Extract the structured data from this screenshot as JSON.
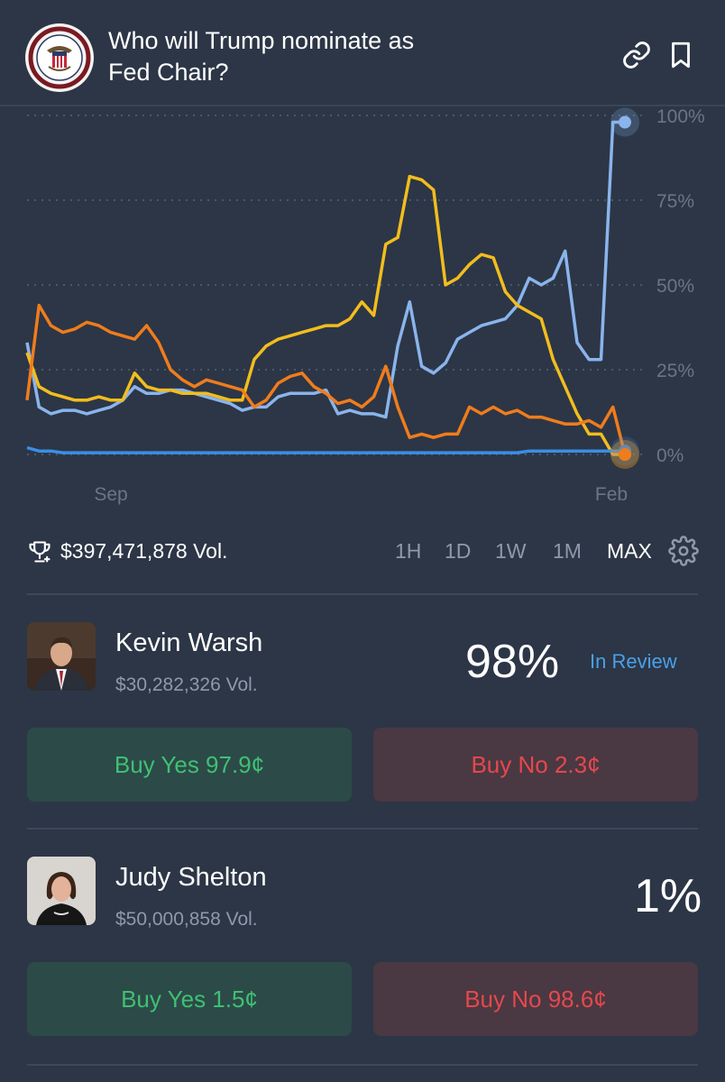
{
  "header": {
    "title_line1": "Who will Trump nominate as",
    "title_line2": "Fed Chair?"
  },
  "icons": {
    "logo": "federal-reserve-seal",
    "link": "link-icon",
    "bookmark": "bookmark-icon",
    "trophy": "trophy-icon",
    "settings": "gear-icon"
  },
  "colors": {
    "background": "#2c3646",
    "series_warsh": "#8ab4ec",
    "series_hassett": "#f2bd1d",
    "series_shelton": "#3b8ee6",
    "series_other": "#f07c1c",
    "yes": "#3fc073",
    "no": "#e5484d",
    "in_review": "#4aa0e8"
  },
  "chart_data": {
    "type": "line",
    "x_labels": [
      "Sep",
      "Feb"
    ],
    "y_ticks": [
      "0%",
      "25%",
      "50%",
      "75%",
      "100%"
    ],
    "ylim": [
      0,
      100
    ],
    "grid": true,
    "x": [
      0,
      2,
      4,
      6,
      8,
      10,
      12,
      14,
      16,
      18,
      20,
      22,
      24,
      26,
      28,
      30,
      32,
      34,
      36,
      38,
      40,
      42,
      44,
      46,
      48,
      50,
      52,
      54,
      56,
      58,
      60,
      62,
      64,
      66,
      68,
      70,
      72,
      74,
      76,
      78,
      80,
      82,
      84,
      86,
      88,
      90,
      92,
      94,
      96,
      98,
      100
    ],
    "series": [
      {
        "color": "#8ab4ec",
        "values": [
          33,
          14,
          12,
          13,
          13,
          12,
          13,
          14,
          16,
          20,
          18,
          18,
          19,
          19,
          18,
          17,
          16,
          15,
          13,
          14,
          14,
          17,
          18,
          18,
          18,
          19,
          12,
          13,
          12,
          12,
          11,
          32,
          45,
          26,
          24,
          27,
          34,
          36,
          38,
          39,
          40,
          44,
          52,
          50,
          52,
          60,
          33,
          28,
          28,
          98,
          98
        ]
      },
      {
        "color": "#f2bd1d",
        "values": [
          30,
          20,
          18,
          17,
          16,
          16,
          17,
          16,
          16,
          24,
          20,
          19,
          19,
          18,
          18,
          18,
          17,
          16,
          16,
          28,
          32,
          34,
          35,
          36,
          37,
          38,
          38,
          40,
          45,
          41,
          62,
          64,
          82,
          81,
          78,
          50,
          52,
          56,
          59,
          58,
          48,
          44,
          42,
          40,
          28,
          20,
          12,
          6,
          6,
          0,
          0
        ]
      },
      {
        "color": "#3b8ee6",
        "values": [
          2,
          1,
          1,
          0.5,
          0.5,
          0.5,
          0.5,
          0.5,
          0.5,
          0.5,
          0.5,
          0.5,
          0.5,
          0.5,
          0.5,
          0.5,
          0.5,
          0.5,
          0.5,
          0.5,
          0.5,
          0.5,
          0.5,
          0.5,
          0.5,
          0.5,
          0.5,
          0.5,
          0.5,
          0.5,
          0.5,
          0.5,
          0.5,
          0.5,
          0.5,
          0.5,
          0.5,
          0.5,
          0.5,
          0.5,
          0.5,
          0.5,
          1,
          1,
          1,
          1,
          1,
          1,
          1,
          1,
          1
        ]
      },
      {
        "color": "#f07c1c",
        "values": [
          16,
          44,
          38,
          36,
          37,
          39,
          38,
          36,
          35,
          34,
          38,
          33,
          25,
          22,
          20,
          22,
          21,
          20,
          19,
          14,
          16,
          21,
          23,
          24,
          20,
          18,
          15,
          16,
          14,
          17,
          26,
          14,
          5,
          6,
          5,
          6,
          6,
          14,
          12,
          14,
          12,
          13,
          11,
          11,
          10,
          9,
          9,
          10,
          8,
          14,
          0
        ]
      }
    ]
  },
  "volume": {
    "total": "$397,471,878 Vol.",
    "timeframes": [
      "1H",
      "1D",
      "1W",
      "1M",
      "MAX"
    ],
    "active_timeframe": "MAX"
  },
  "candidates": [
    {
      "name": "Kevin Warsh",
      "volume": "$30,282,326 Vol.",
      "percent": "98%",
      "status": "In Review",
      "buy_yes": "Buy Yes 97.9¢",
      "buy_no": "Buy No 2.3¢"
    },
    {
      "name": "Judy Shelton",
      "volume": "$50,000,858 Vol.",
      "percent": "1%",
      "status": "",
      "buy_yes": "Buy Yes 1.5¢",
      "buy_no": "Buy No 98.6¢"
    }
  ]
}
